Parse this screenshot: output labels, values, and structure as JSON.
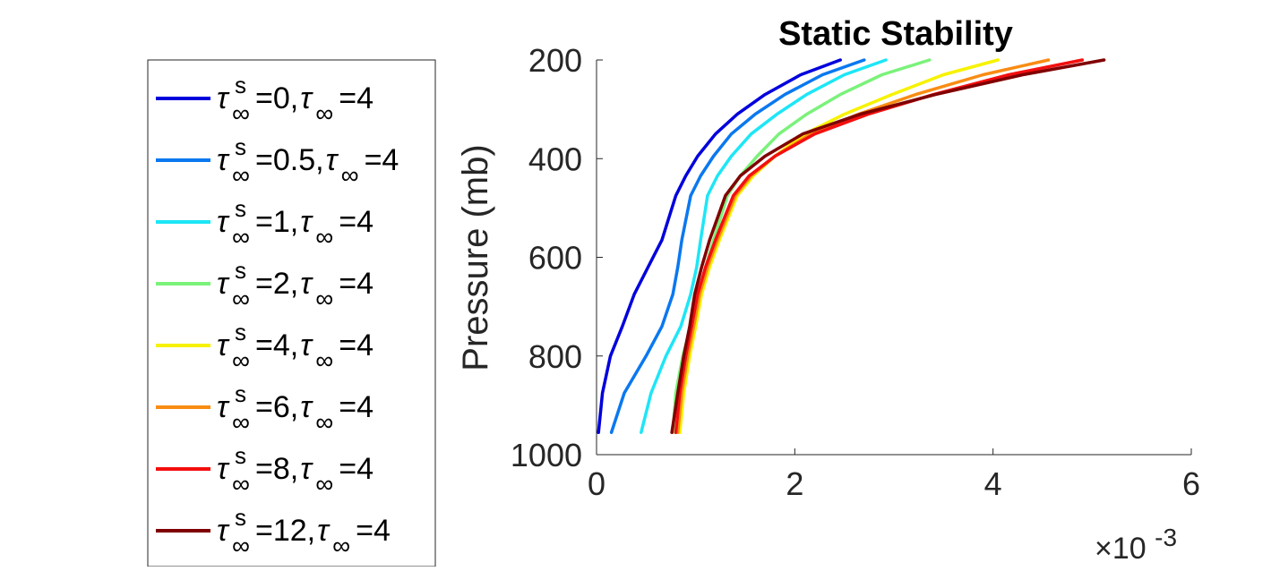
{
  "chart_data": {
    "type": "line",
    "title": "Static Stability",
    "xlabel": "",
    "ylabel": "Pressure (mb)",
    "x_multiplier_label": "×10",
    "x_multiplier_exponent": "-3",
    "xlim": [
      0,
      6
    ],
    "ylim": [
      1000,
      200
    ],
    "y_reversed": true,
    "xticks": [
      0,
      2,
      4,
      6
    ],
    "xtick_labels": [
      "0",
      "2",
      "4",
      "6"
    ],
    "yticks": [
      200,
      400,
      600,
      800,
      1000
    ],
    "ytick_labels": [
      "200",
      "400",
      "600",
      "800",
      "1000"
    ],
    "grid": false,
    "legend_position": "outside-left",
    "legend_symbol": "τ",
    "legend_sub": "∞",
    "legend_sup": "s",
    "pressure": [
      955,
      875,
      800,
      740,
      675,
      620,
      565,
      475,
      435,
      395,
      350,
      310,
      270,
      230,
      200
    ],
    "series": [
      {
        "name": "τ∞s=0, τ∞=4",
        "name_a": "=0, ",
        "name_b": "=4",
        "color": "#0000dd",
        "values": [
          0.02,
          0.06,
          0.14,
          0.26,
          0.38,
          0.52,
          0.66,
          0.8,
          0.9,
          1.02,
          1.2,
          1.42,
          1.7,
          2.06,
          2.46
        ]
      },
      {
        "name": "τ∞s=0.5, τ∞=4",
        "name_a": "=0.5, ",
        "name_b": "=4",
        "color": "#0a78f0",
        "values": [
          0.15,
          0.28,
          0.5,
          0.66,
          0.77,
          0.82,
          0.86,
          0.95,
          1.05,
          1.18,
          1.36,
          1.6,
          1.9,
          2.28,
          2.7
        ]
      },
      {
        "name": "τ∞s=1, τ∞=4",
        "name_a": "=1, ",
        "name_b": "=4",
        "color": "#1de6f6",
        "values": [
          0.45,
          0.55,
          0.7,
          0.85,
          0.95,
          1.01,
          1.05,
          1.12,
          1.22,
          1.36,
          1.56,
          1.82,
          2.12,
          2.5,
          2.92
        ]
      },
      {
        "name": "τ∞s=2, τ∞=4",
        "name_a": "=2, ",
        "name_b": "=4",
        "color": "#7af27a",
        "values": [
          0.77,
          0.8,
          0.87,
          0.95,
          1.03,
          1.1,
          1.18,
          1.32,
          1.45,
          1.62,
          1.84,
          2.12,
          2.46,
          2.88,
          3.36
        ]
      },
      {
        "name": "τ∞s=4, τ∞=4",
        "name_a": "=4, ",
        "name_b": "=4",
        "color": "#f7f201",
        "values": [
          0.84,
          0.88,
          0.94,
          1.0,
          1.06,
          1.14,
          1.24,
          1.42,
          1.58,
          1.8,
          2.1,
          2.5,
          2.98,
          3.5,
          4.05
        ]
      },
      {
        "name": "τ∞s=6, τ∞=4",
        "name_a": "=6, ",
        "name_b": "=4",
        "color": "#f98c13",
        "values": [
          0.82,
          0.86,
          0.92,
          0.98,
          1.04,
          1.12,
          1.22,
          1.4,
          1.56,
          1.8,
          2.16,
          2.64,
          3.22,
          3.9,
          4.56
        ]
      },
      {
        "name": "τ∞s=8, τ∞=4",
        "name_a": "=8, ",
        "name_b": "=4",
        "color": "#f40f0f",
        "values": [
          0.8,
          0.84,
          0.9,
          0.96,
          1.02,
          1.1,
          1.2,
          1.38,
          1.54,
          1.8,
          2.2,
          2.74,
          3.4,
          4.16,
          4.9
        ]
      },
      {
        "name": "τ∞s=12, τ∞=4",
        "name_a": "=12, ",
        "name_b": "=4",
        "color": "#800000",
        "values": [
          0.76,
          0.82,
          0.88,
          0.94,
          0.99,
          1.06,
          1.14,
          1.3,
          1.45,
          1.7,
          2.08,
          2.66,
          3.42,
          4.3,
          5.12
        ]
      }
    ]
  }
}
